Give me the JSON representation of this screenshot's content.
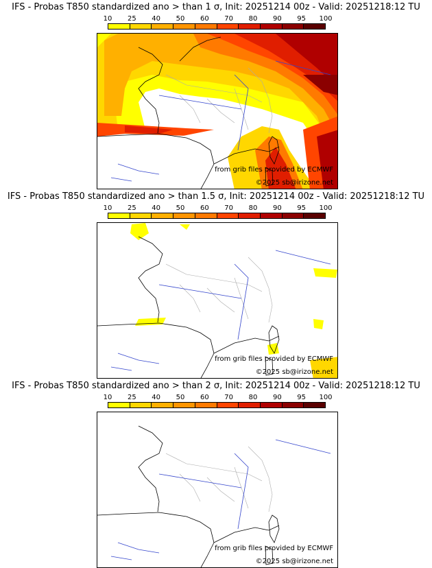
{
  "colorbar": {
    "labels": [
      "10",
      "25",
      "40",
      "50",
      "60",
      "70",
      "80",
      "90",
      "95",
      "100"
    ],
    "colors": [
      "#ffff00",
      "#ffd700",
      "#ffb000",
      "#ff9500",
      "#ff7a00",
      "#ff4500",
      "#e01e00",
      "#b00000",
      "#8b0000",
      "#5a0000"
    ]
  },
  "panels": [
    {
      "title": "IFS - Probas T850  standardized ano > than 1 σ, Init: 20251214 00z - Valid: 20251218:12 TU",
      "credit_source": "from grib files provided by ECMWF",
      "credit_copyright": "©2025 sb@irizone.net"
    },
    {
      "title": "IFS - Probas T850  standardized ano > than 1.5 σ, Init: 20251214 00z - Valid: 20251218:12 TU",
      "credit_source": "from grib files provided by ECMWF",
      "credit_copyright": "©2025 sb@irizone.net"
    },
    {
      "title": "IFS - Probas T850  standardized ano > than 2 σ, Init: 20251214 00z - Valid: 20251218:12 TU",
      "credit_source": "from grib files provided by ECMWF",
      "credit_copyright": "©2025 sb@irizone.net"
    }
  ],
  "map_colors": {
    "coast": "#000000",
    "borders": "#aaaaaa",
    "rivers": "#3344cc"
  }
}
